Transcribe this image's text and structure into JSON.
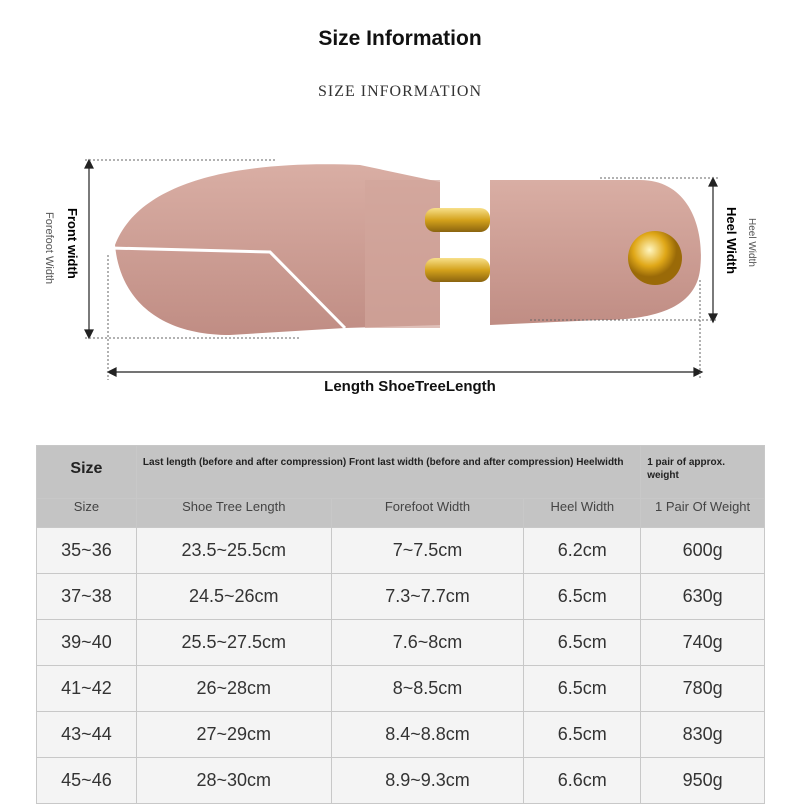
{
  "title": "Size Information",
  "subtitle": "SIZE INFORMATION",
  "diagram": {
    "front_width_label": "Front width",
    "forefoot_width_label": "Forefoot Width",
    "heel_width_label": "Heel Width",
    "heel_width_sub_label": "Heel Width",
    "length_label": "Length ShoeTreeLength"
  },
  "table": {
    "header_size": "Size",
    "header_cn_combined": "Last length (before and after compression) Front last width (before and after compression) Heelwidth",
    "header_weight": "1 pair of approx. weight",
    "columns": [
      "Size",
      "Shoe Tree Length",
      "Forefoot Width",
      "Heel Width",
      "1 Pair Of Weight"
    ],
    "rows": [
      [
        "35~36",
        "23.5~25.5cm",
        "7~7.5cm",
        "6.2cm",
        "600g"
      ],
      [
        "37~38",
        "24.5~26cm",
        "7.3~7.7cm",
        "6.5cm",
        "630g"
      ],
      [
        "39~40",
        "25.5~27.5cm",
        "7.6~8cm",
        "6.5cm",
        "740g"
      ],
      [
        "41~42",
        "26~28cm",
        "8~8.5cm",
        "6.5cm",
        "780g"
      ],
      [
        "43~44",
        "27~29cm",
        "8.4~8.8cm",
        "6.5cm",
        "830g"
      ],
      [
        "45~46",
        "28~30cm",
        "8.9~9.3cm",
        "6.6cm",
        "950g"
      ]
    ]
  }
}
